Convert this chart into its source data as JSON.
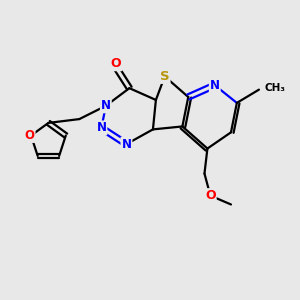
{
  "background_color": "#e8e8e8",
  "bond_color": "#000000",
  "atom_colors": {
    "O": "#ff0000",
    "N": "#0000ff",
    "S": "#b8960c",
    "C": "#000000"
  },
  "figsize": [
    3.0,
    3.0
  ],
  "dpi": 100
}
